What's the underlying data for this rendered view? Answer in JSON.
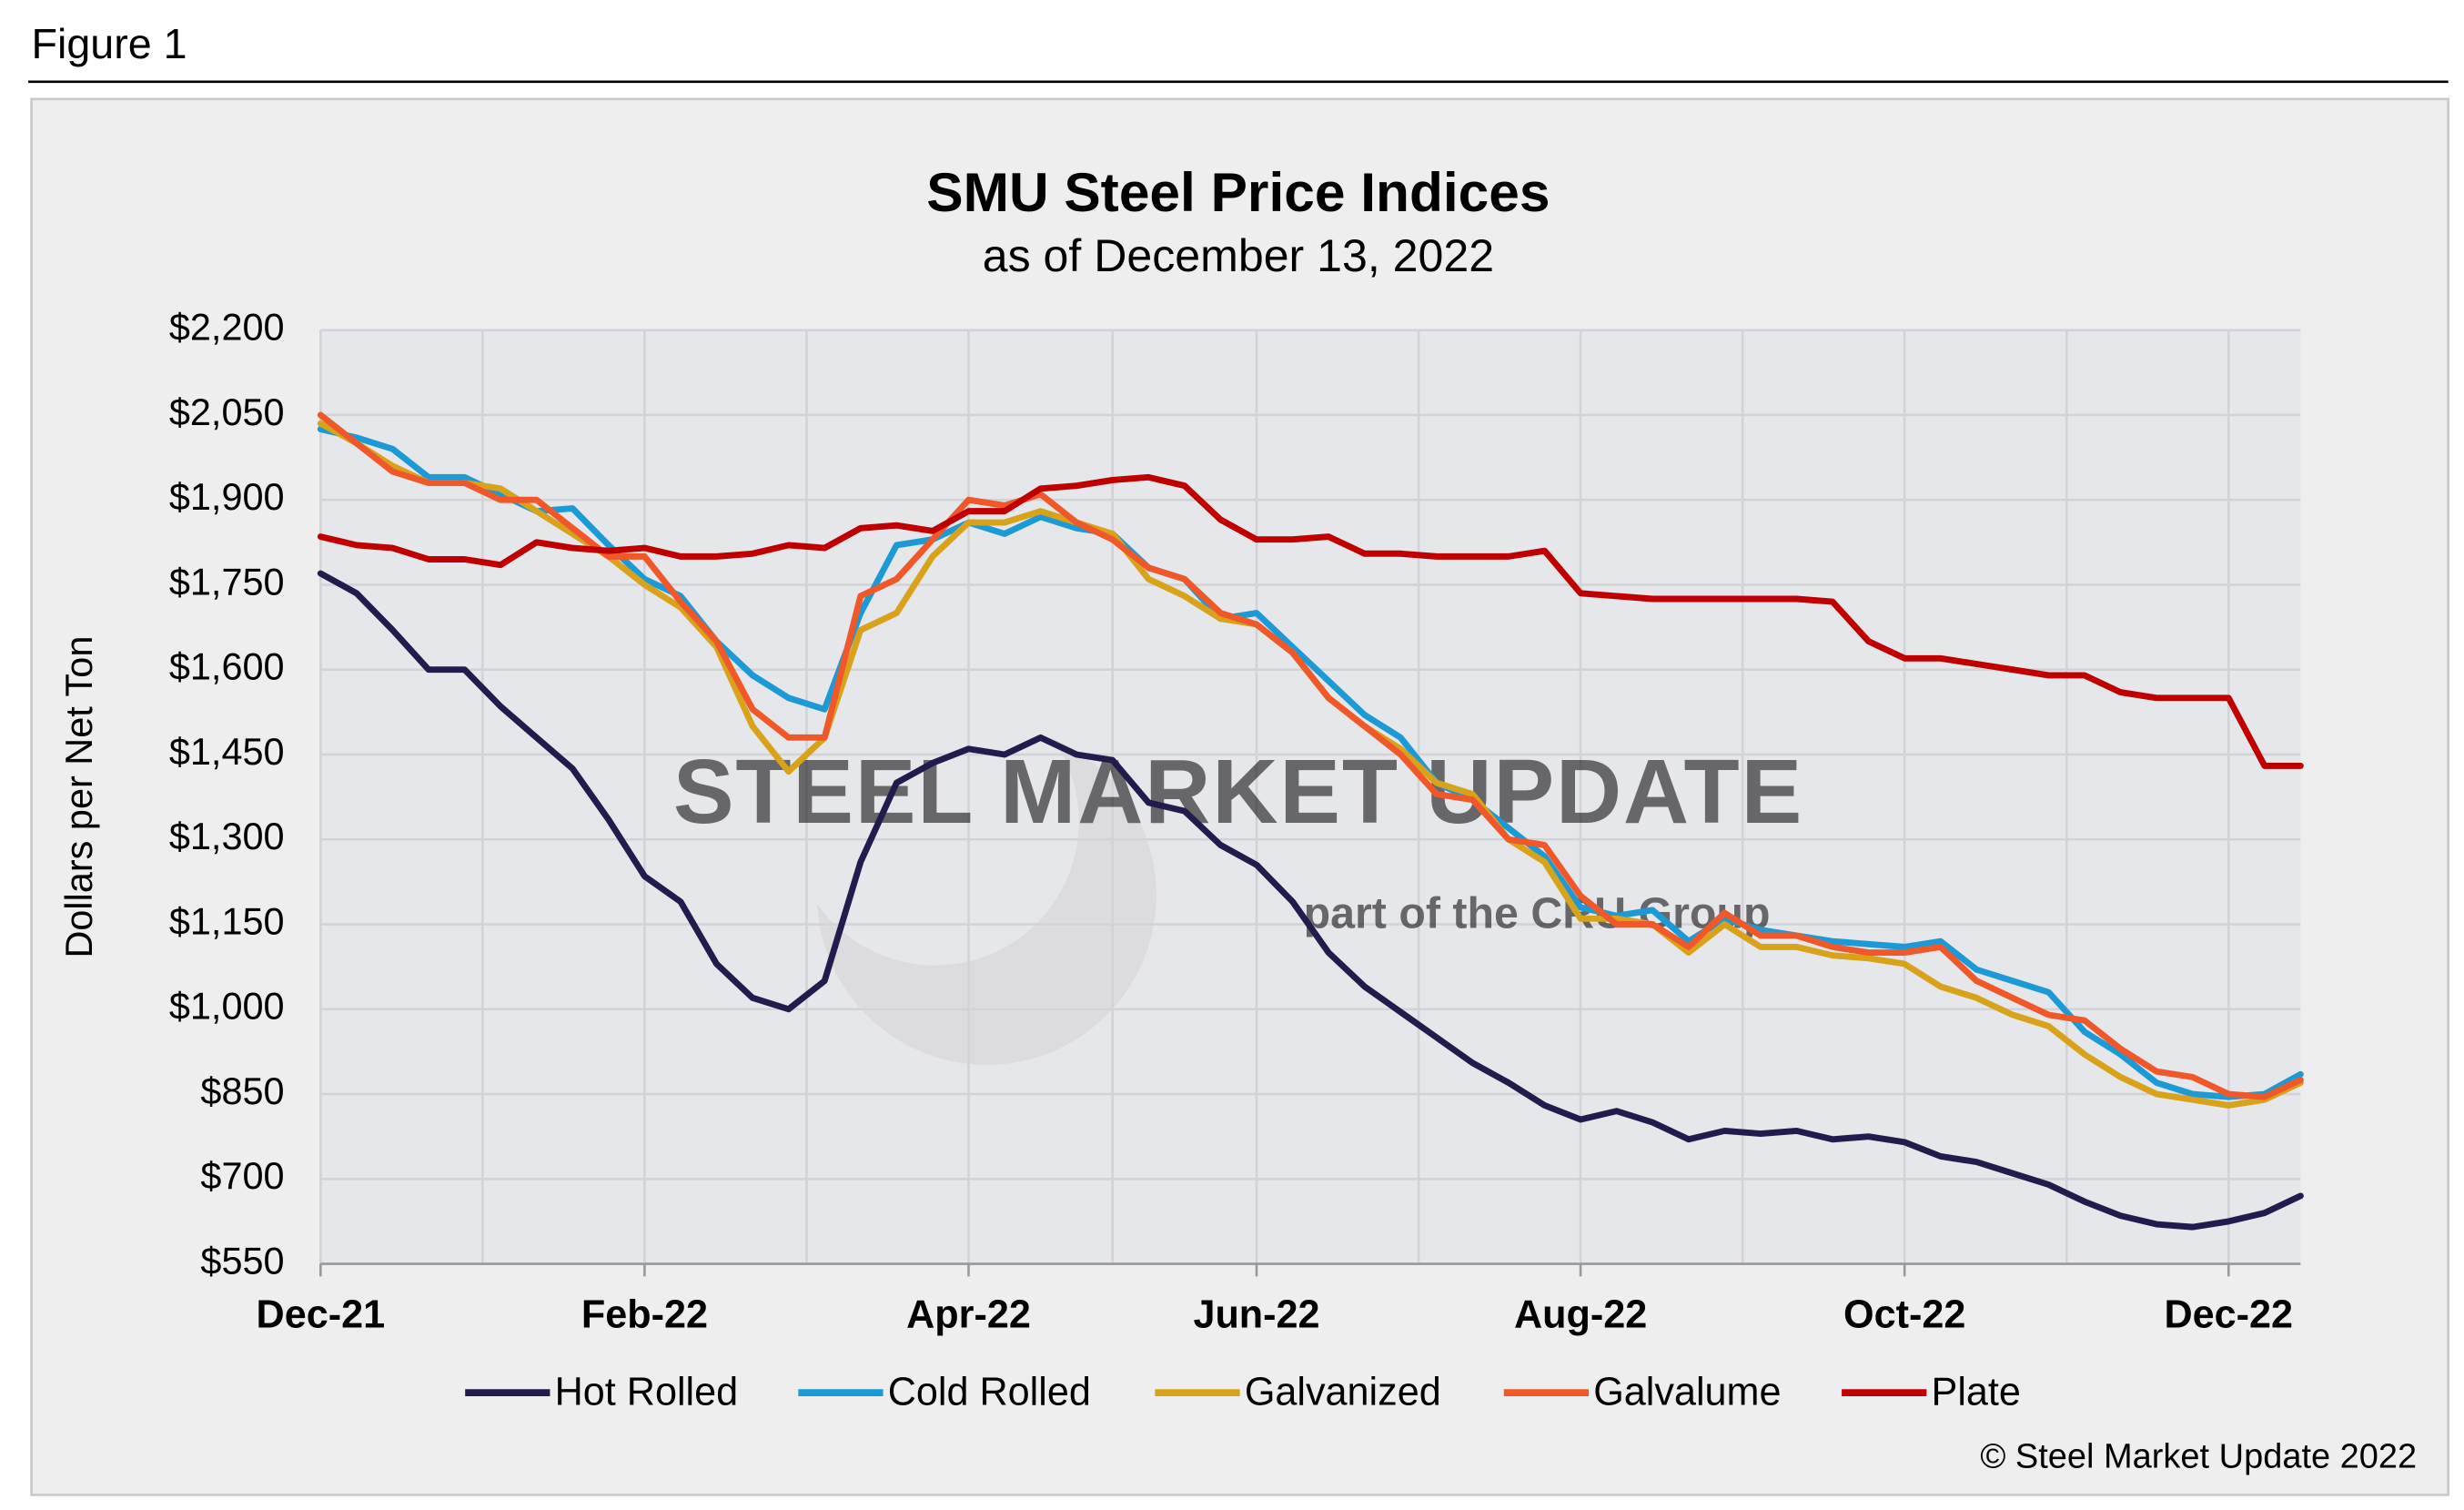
{
  "figure_label": "Figure 1",
  "chart_data": {
    "type": "line",
    "title": "SMU Steel Price Indices",
    "subtitle": "as of December 13, 2022",
    "y_label": "Dollars per Net Ton",
    "watermark": "STEEL MARKET UPDATE",
    "watermark_sub": "part of the CRU Group",
    "copyright": "© Steel Market Update 2022",
    "categories": [
      "Dec-21",
      null,
      null,
      null,
      null,
      null,
      null,
      null,
      null,
      "Feb-22",
      null,
      null,
      null,
      null,
      null,
      null,
      null,
      null,
      "Apr-22",
      null,
      null,
      null,
      null,
      null,
      null,
      null,
      "Jun-22",
      null,
      null,
      null,
      null,
      null,
      null,
      null,
      null,
      "Aug-22",
      null,
      null,
      null,
      null,
      null,
      null,
      null,
      null,
      "Oct-22",
      null,
      null,
      null,
      null,
      null,
      null,
      null,
      null,
      "Dec-22",
      null,
      null
    ],
    "ylim": [
      550,
      2200
    ],
    "yticks": [
      {
        "value": 550,
        "label": "$550"
      },
      {
        "value": 700,
        "label": "$700"
      },
      {
        "value": 850,
        "label": "$850"
      },
      {
        "value": 1000,
        "label": "$1,000"
      },
      {
        "value": 1150,
        "label": "$1,150"
      },
      {
        "value": 1300,
        "label": "$1,300"
      },
      {
        "value": 1450,
        "label": "$1,450"
      },
      {
        "value": 1600,
        "label": "$1,600"
      },
      {
        "value": 1750,
        "label": "$1,750"
      },
      {
        "value": 1900,
        "label": "$1,900"
      },
      {
        "value": 2050,
        "label": "$2,050"
      },
      {
        "value": 2200,
        "label": "$2,200"
      }
    ],
    "grid": true,
    "legend": "bottom",
    "series": [
      {
        "name": "Hot Rolled",
        "color": "#221c4d",
        "values": [
          1770,
          1735,
          1670,
          1600,
          1600,
          1535,
          1480,
          1425,
          1335,
          1235,
          1190,
          1080,
          1020,
          1000,
          1050,
          1260,
          1400,
          1435,
          1460,
          1450,
          1480,
          1450,
          1440,
          1365,
          1350,
          1290,
          1255,
          1190,
          1100,
          1040,
          995,
          950,
          905,
          870,
          830,
          805,
          820,
          800,
          770,
          785,
          780,
          785,
          770,
          775,
          765,
          740,
          730,
          710,
          690,
          660,
          635,
          620,
          615,
          625,
          640,
          670
        ]
      },
      {
        "name": "Cold Rolled",
        "color": "#1c9ad6",
        "values": [
          2025,
          2010,
          1990,
          1940,
          1940,
          1910,
          1880,
          1885,
          1820,
          1760,
          1730,
          1650,
          1590,
          1550,
          1530,
          1700,
          1820,
          1830,
          1860,
          1840,
          1870,
          1850,
          1840,
          1780,
          1760,
          1690,
          1700,
          1640,
          1580,
          1520,
          1480,
          1400,
          1370,
          1320,
          1270,
          1180,
          1165,
          1175,
          1120,
          1160,
          1140,
          1130,
          1120,
          1115,
          1110,
          1120,
          1070,
          1050,
          1030,
          960,
          920,
          870,
          850,
          845,
          850,
          885
        ]
      },
      {
        "name": "Galvanized",
        "color": "#d9a21b",
        "values": [
          2035,
          2000,
          1960,
          1930,
          1930,
          1920,
          1880,
          1840,
          1800,
          1750,
          1710,
          1640,
          1500,
          1420,
          1480,
          1670,
          1700,
          1800,
          1860,
          1860,
          1880,
          1860,
          1840,
          1760,
          1730,
          1690,
          1680,
          1630,
          1550,
          1500,
          1460,
          1400,
          1380,
          1300,
          1260,
          1160,
          1160,
          1150,
          1100,
          1150,
          1110,
          1110,
          1095,
          1090,
          1080,
          1040,
          1020,
          990,
          970,
          920,
          880,
          850,
          840,
          830,
          840,
          870
        ]
      },
      {
        "name": "Galvalume",
        "color": "#f0582a",
        "values": [
          2050,
          2000,
          1950,
          1930,
          1930,
          1900,
          1900,
          1850,
          1800,
          1800,
          1720,
          1650,
          1530,
          1480,
          1480,
          1730,
          1760,
          1830,
          1900,
          1890,
          1910,
          1860,
          1830,
          1780,
          1760,
          1700,
          1680,
          1630,
          1550,
          1500,
          1450,
          1380,
          1370,
          1300,
          1290,
          1200,
          1150,
          1150,
          1110,
          1170,
          1130,
          1130,
          1110,
          1100,
          1100,
          1110,
          1050,
          1020,
          990,
          980,
          930,
          890,
          880,
          850,
          845,
          875
        ]
      },
      {
        "name": "Plate",
        "color": "#c00000",
        "values": [
          1835,
          1820,
          1815,
          1795,
          1795,
          1785,
          1825,
          1815,
          1810,
          1815,
          1800,
          1800,
          1805,
          1820,
          1815,
          1850,
          1855,
          1845,
          1880,
          1880,
          1920,
          1925,
          1935,
          1940,
          1925,
          1865,
          1830,
          1830,
          1835,
          1805,
          1805,
          1800,
          1800,
          1800,
          1810,
          1735,
          1730,
          1725,
          1725,
          1725,
          1725,
          1725,
          1720,
          1650,
          1620,
          1620,
          1610,
          1600,
          1590,
          1590,
          1560,
          1550,
          1550,
          1550,
          1430,
          1430
        ]
      }
    ]
  }
}
